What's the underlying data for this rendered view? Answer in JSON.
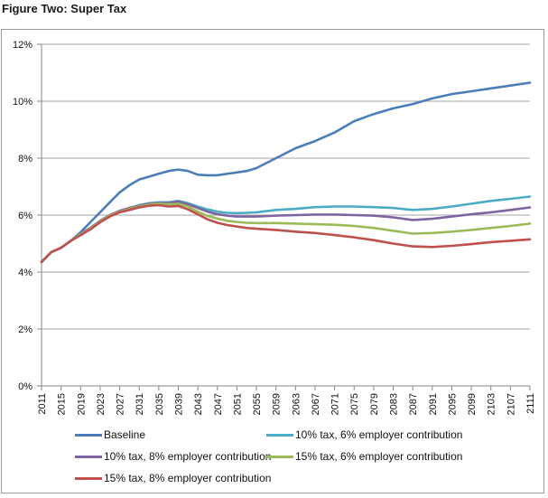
{
  "chart_data": {
    "type": "line",
    "title": "Figure Two: Super Tax",
    "xlabel": "",
    "ylabel": "",
    "ylim": [
      0,
      12
    ],
    "yticks": [
      "0%",
      "2%",
      "4%",
      "6%",
      "8%",
      "10%",
      "12%"
    ],
    "ytick_values": [
      0,
      2,
      4,
      6,
      8,
      10,
      12
    ],
    "xlim": [
      2011,
      2111
    ],
    "xticks": [
      "2011",
      "2015",
      "2019",
      "2023",
      "2027",
      "2031",
      "2035",
      "2039",
      "2043",
      "2047",
      "2051",
      "2055",
      "2059",
      "2063",
      "2067",
      "2071",
      "2075",
      "2079",
      "2083",
      "2087",
      "2091",
      "2095",
      "2099",
      "2103",
      "2107",
      "2111"
    ],
    "grid": "horizontal",
    "legend_position": "bottom",
    "x": [
      2011,
      2013,
      2015,
      2017,
      2019,
      2021,
      2023,
      2025,
      2027,
      2029,
      2031,
      2033,
      2035,
      2037,
      2039,
      2041,
      2043,
      2045,
      2047,
      2049,
      2051,
      2053,
      2055,
      2059,
      2063,
      2067,
      2071,
      2075,
      2079,
      2083,
      2087,
      2091,
      2095,
      2099,
      2103,
      2107,
      2111
    ],
    "series": [
      {
        "name": "Baseline",
        "color": "#4a7ebb",
        "values": [
          4.35,
          4.7,
          4.85,
          5.1,
          5.4,
          5.75,
          6.1,
          6.45,
          6.8,
          7.05,
          7.25,
          7.35,
          7.45,
          7.55,
          7.6,
          7.55,
          7.42,
          7.4,
          7.4,
          7.45,
          7.5,
          7.55,
          7.65,
          8.0,
          8.35,
          8.6,
          8.9,
          9.3,
          9.55,
          9.75,
          9.9,
          10.1,
          10.25,
          10.35,
          10.45,
          10.55,
          10.65
        ]
      },
      {
        "name": "10% tax, 6% employer contribution",
        "color": "#4bacc6",
        "values": [
          4.35,
          4.7,
          4.85,
          5.1,
          5.35,
          5.55,
          5.8,
          6.0,
          6.15,
          6.25,
          6.35,
          6.42,
          6.45,
          6.45,
          6.5,
          6.42,
          6.3,
          6.2,
          6.12,
          6.08,
          6.07,
          6.08,
          6.1,
          6.18,
          6.22,
          6.28,
          6.3,
          6.3,
          6.28,
          6.25,
          6.18,
          6.22,
          6.3,
          6.4,
          6.5,
          6.57,
          6.65
        ]
      },
      {
        "name": "10% tax, 8% employer contribution",
        "color": "#8064a2",
        "values": [
          4.35,
          4.7,
          4.85,
          5.1,
          5.35,
          5.55,
          5.8,
          6.0,
          6.15,
          6.25,
          6.33,
          6.4,
          6.43,
          6.43,
          6.47,
          6.38,
          6.25,
          6.12,
          6.03,
          5.98,
          5.95,
          5.95,
          5.95,
          5.98,
          6.0,
          6.02,
          6.02,
          6.0,
          5.98,
          5.92,
          5.83,
          5.87,
          5.95,
          6.03,
          6.1,
          6.18,
          6.27
        ]
      },
      {
        "name": "15% tax, 6% employer contribution",
        "color": "#9bbb59",
        "values": [
          4.35,
          4.7,
          4.85,
          5.1,
          5.33,
          5.53,
          5.78,
          5.98,
          6.12,
          6.22,
          6.3,
          6.37,
          6.4,
          6.38,
          6.4,
          6.3,
          6.12,
          5.97,
          5.88,
          5.8,
          5.76,
          5.73,
          5.72,
          5.72,
          5.7,
          5.68,
          5.66,
          5.62,
          5.55,
          5.45,
          5.35,
          5.37,
          5.42,
          5.48,
          5.55,
          5.62,
          5.7
        ]
      },
      {
        "name": "15% tax, 8% employer contribution",
        "color": "#c0504d",
        "values": [
          4.35,
          4.7,
          4.85,
          5.1,
          5.3,
          5.5,
          5.75,
          5.95,
          6.1,
          6.18,
          6.27,
          6.33,
          6.35,
          6.3,
          6.32,
          6.2,
          6.03,
          5.85,
          5.73,
          5.65,
          5.6,
          5.55,
          5.52,
          5.48,
          5.42,
          5.37,
          5.3,
          5.22,
          5.12,
          5.0,
          4.9,
          4.88,
          4.92,
          4.98,
          5.05,
          5.1,
          5.15
        ]
      }
    ]
  }
}
